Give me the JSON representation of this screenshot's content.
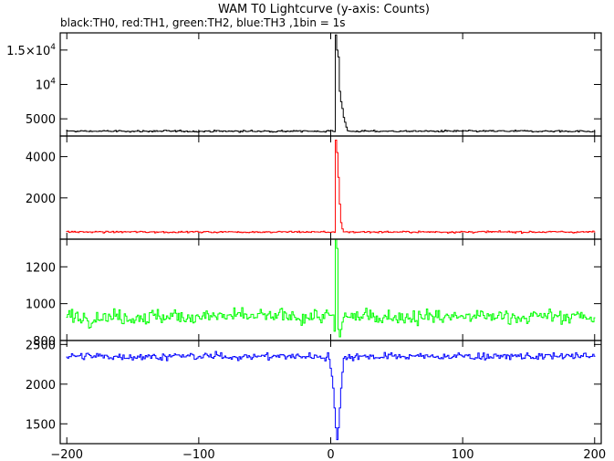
{
  "title": "WAM T0 Lightcurve (y-axis: Counts)",
  "subtitle": "black:TH0, red:TH1, green:TH2, blue:TH3 ,1bin = 1s",
  "chart_data": {
    "type": "line",
    "xlim": [
      -205,
      205
    ],
    "x_ticks": [
      -200,
      -100,
      0,
      100,
      200
    ],
    "x_tick_labels": [
      "−200",
      "−100",
      "0",
      "100",
      "200"
    ],
    "bin_seconds": 1,
    "panels": [
      {
        "name": "TH0",
        "color": "#000000",
        "ylim": [
          2500,
          17500
        ],
        "y_ticks": [
          5000,
          10000,
          15000
        ],
        "y_tick_labels": [
          "5000",
          "10^4",
          "1.5×10^4"
        ],
        "baseline": 3200,
        "noise": 90,
        "peak": [
          {
            "x": 4,
            "y": 17200
          },
          {
            "x": 5,
            "y": 15000
          },
          {
            "x": 6,
            "y": 14000
          },
          {
            "x": 7,
            "y": 9000
          },
          {
            "x": 8,
            "y": 7500
          },
          {
            "x": 9,
            "y": 6500
          },
          {
            "x": 10,
            "y": 5200
          },
          {
            "x": 11,
            "y": 4500
          },
          {
            "x": 12,
            "y": 3800
          }
        ]
      },
      {
        "name": "TH1",
        "color": "#ff0000",
        "ylim": [
          0,
          5000
        ],
        "y_ticks": [
          2000,
          4000
        ],
        "y_tick_labels": [
          "2000",
          "4000"
        ],
        "baseline": 350,
        "noise": 30,
        "peak": [
          {
            "x": 4,
            "y": 4800
          },
          {
            "x": 5,
            "y": 4200
          },
          {
            "x": 6,
            "y": 3000
          },
          {
            "x": 7,
            "y": 1700
          },
          {
            "x": 8,
            "y": 800
          },
          {
            "x": 9,
            "y": 500
          }
        ]
      },
      {
        "name": "TH2",
        "color": "#00ff00",
        "ylim": [
          800,
          1350
        ],
        "y_ticks": [
          800,
          1000,
          1200
        ],
        "y_tick_labels": [
          "800",
          "1000",
          "1200"
        ],
        "baseline": 930,
        "noise": 28,
        "peak": [
          {
            "x": 3,
            "y": 850
          },
          {
            "x": 4,
            "y": 1350
          },
          {
            "x": 5,
            "y": 1300
          },
          {
            "x": 6,
            "y": 860
          },
          {
            "x": 7,
            "y": 820
          },
          {
            "x": 8,
            "y": 860
          },
          {
            "x": 9,
            "y": 900
          }
        ]
      },
      {
        "name": "TH3",
        "color": "#0000ff",
        "ylim": [
          1250,
          2550
        ],
        "y_ticks": [
          1500,
          2000,
          2500
        ],
        "y_tick_labels": [
          "1500",
          "2000",
          "2500"
        ],
        "baseline": 2350,
        "noise": 32,
        "peak": [
          {
            "x": 0,
            "y": 2200
          },
          {
            "x": 1,
            "y": 2100
          },
          {
            "x": 2,
            "y": 1950
          },
          {
            "x": 3,
            "y": 1700
          },
          {
            "x": 4,
            "y": 1450
          },
          {
            "x": 5,
            "y": 1300
          },
          {
            "x": 6,
            "y": 1450
          },
          {
            "x": 7,
            "y": 1700
          },
          {
            "x": 8,
            "y": 1950
          },
          {
            "x": 9,
            "y": 2150
          }
        ]
      }
    ]
  }
}
